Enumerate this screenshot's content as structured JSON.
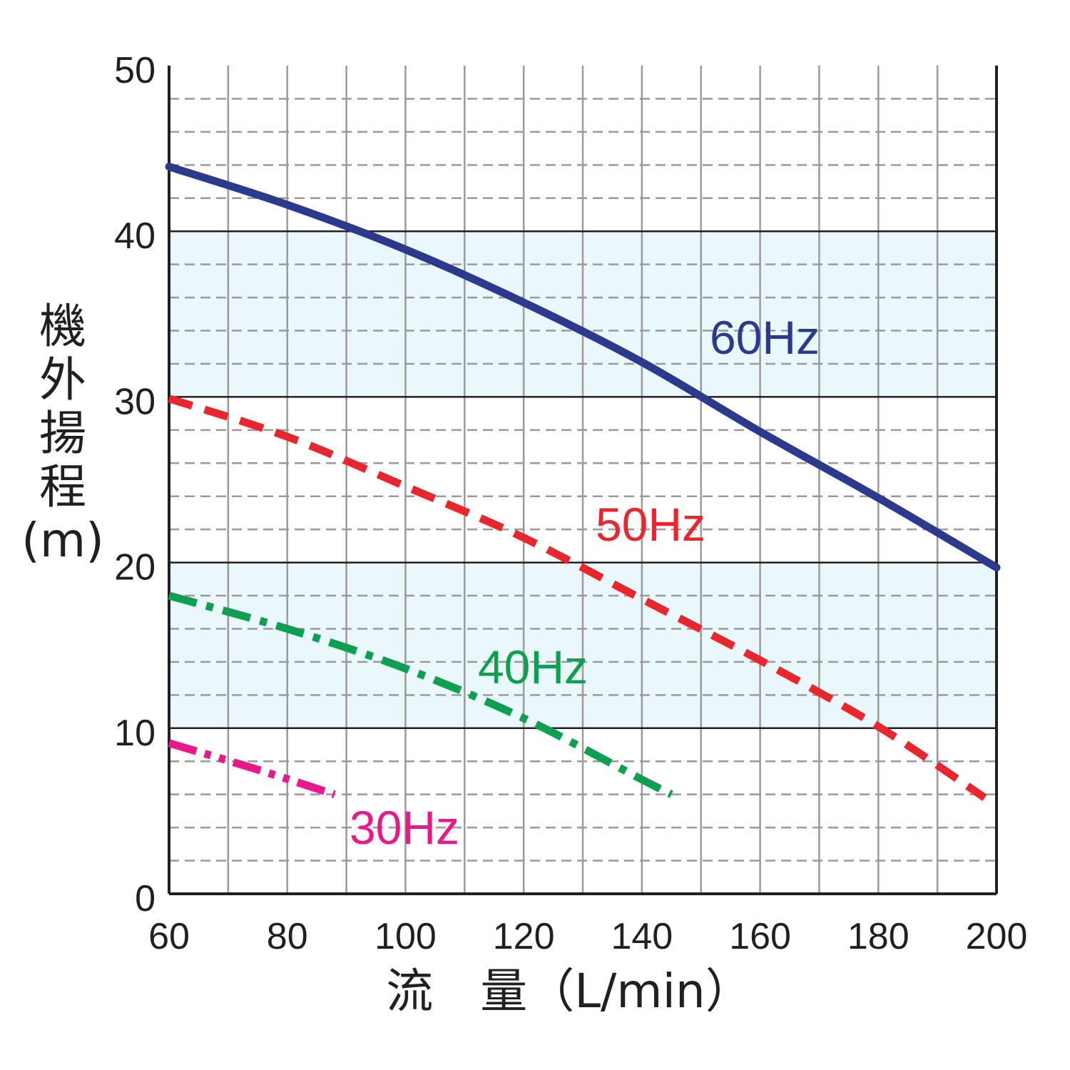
{
  "chart_data": {
    "type": "line",
    "xlabel": "流　量（L/min）",
    "ylabel": "機外揚程(m)",
    "xlim": [
      60,
      200
    ],
    "ylim": [
      0,
      50
    ],
    "x_ticks": [
      "60",
      "80",
      "100",
      "120",
      "140",
      "160",
      "180",
      "200"
    ],
    "y_ticks": [
      "0",
      "10",
      "20",
      "30",
      "40",
      "50"
    ],
    "grid": true,
    "shaded_bands": [
      [
        10,
        20
      ],
      [
        30,
        40
      ]
    ],
    "band_color": "#eaf7fb",
    "series": [
      {
        "name": "60Hz",
        "color": "#2b3a8c",
        "style": "solid",
        "points": [
          [
            60,
            43.9
          ],
          [
            80,
            41.6
          ],
          [
            100,
            38.9
          ],
          [
            120,
            35.7
          ],
          [
            140,
            32.1
          ],
          [
            160,
            27.9
          ],
          [
            180,
            23.9
          ],
          [
            200,
            19.7
          ]
        ]
      },
      {
        "name": "50Hz",
        "color": "#e8262e",
        "style": "dashed",
        "points": [
          [
            60,
            29.9
          ],
          [
            80,
            27.6
          ],
          [
            100,
            24.6
          ],
          [
            120,
            21.5
          ],
          [
            140,
            17.8
          ],
          [
            160,
            14.1
          ],
          [
            180,
            10.1
          ],
          [
            198,
            5.8
          ]
        ]
      },
      {
        "name": "40Hz",
        "color": "#0ea050",
        "style": "dashdot",
        "points": [
          [
            60,
            18.0
          ],
          [
            80,
            16.0
          ],
          [
            100,
            13.6
          ],
          [
            120,
            10.6
          ],
          [
            140,
            6.9
          ],
          [
            145,
            6.0
          ]
        ]
      },
      {
        "name": "30Hz",
        "color": "#e8198b",
        "style": "dashdotdot",
        "points": [
          [
            60,
            9.1
          ],
          [
            75,
            7.5
          ],
          [
            88,
            6.0
          ]
        ]
      }
    ]
  }
}
